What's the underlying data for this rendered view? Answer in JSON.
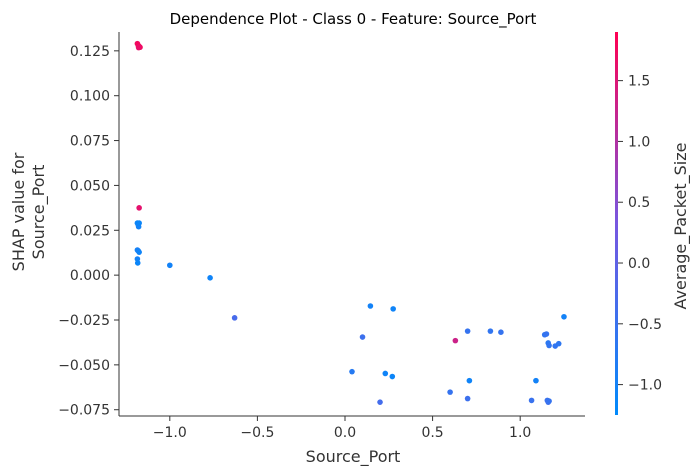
{
  "chart_data": {
    "type": "scatter",
    "title": "Dependence Plot - Class 0 - Feature: Source_Port",
    "xlabel": "Source_Port",
    "ylabel_lines": [
      "SHAP value for",
      "Source_Port"
    ],
    "colorbar_label": "Average_Packet_Size",
    "xlim": [
      -1.29,
      1.37
    ],
    "ylim": [
      -0.0785,
      0.1355
    ],
    "x_ticks": [
      -1.0,
      -0.5,
      0.0,
      0.5,
      1.0
    ],
    "x_tick_labels": [
      "−1.0",
      "−0.5",
      "0.0",
      "0.5",
      "1.0"
    ],
    "y_ticks": [
      -0.075,
      -0.05,
      -0.025,
      0.0,
      0.025,
      0.05,
      0.075,
      0.1,
      0.125
    ],
    "y_tick_labels": [
      "−0.075",
      "−0.050",
      "−0.025",
      "0.000",
      "0.025",
      "0.050",
      "0.075",
      "0.100",
      "0.125"
    ],
    "color_range": [
      -1.25,
      1.9
    ],
    "color_ticks": [
      -1.0,
      -0.5,
      0.0,
      0.5,
      1.0,
      1.5
    ],
    "color_tick_labels": [
      "−1.0",
      "−0.5",
      "0.0",
      "0.5",
      "1.0",
      "1.5"
    ],
    "colormap": [
      "#008afb",
      "#7757e0",
      "#ff0052"
    ],
    "grid": false,
    "points": [
      {
        "x": -1.185,
        "y": 0.129,
        "c": 1.75
      },
      {
        "x": -1.18,
        "y": 0.128,
        "c": 1.8
      },
      {
        "x": -1.175,
        "y": 0.1275,
        "c": 1.7
      },
      {
        "x": -1.17,
        "y": 0.127,
        "c": 1.75
      },
      {
        "x": -1.178,
        "y": 0.1268,
        "c": 1.65
      },
      {
        "x": -1.175,
        "y": 0.0375,
        "c": 1.6
      },
      {
        "x": -1.185,
        "y": 0.029,
        "c": -1.1
      },
      {
        "x": -1.18,
        "y": 0.028,
        "c": -1.05
      },
      {
        "x": -1.178,
        "y": 0.027,
        "c": -1.0
      },
      {
        "x": -1.175,
        "y": 0.029,
        "c": -1.1
      },
      {
        "x": -1.185,
        "y": 0.014,
        "c": -1.0
      },
      {
        "x": -1.18,
        "y": 0.0135,
        "c": -0.95
      },
      {
        "x": -1.175,
        "y": 0.0128,
        "c": -1.05
      },
      {
        "x": -1.185,
        "y": 0.009,
        "c": -1.0
      },
      {
        "x": -1.183,
        "y": 0.0068,
        "c": -1.1
      },
      {
        "x": -1.0,
        "y": 0.0055,
        "c": -1.0
      },
      {
        "x": -0.77,
        "y": -0.0015,
        "c": -1.05
      },
      {
        "x": -0.63,
        "y": -0.0238,
        "c": -0.3
      },
      {
        "x": 0.145,
        "y": -0.0172,
        "c": -1.0
      },
      {
        "x": 0.275,
        "y": -0.0188,
        "c": -1.05
      },
      {
        "x": 0.1,
        "y": -0.0345,
        "c": -0.45
      },
      {
        "x": 0.04,
        "y": -0.0538,
        "c": -0.75
      },
      {
        "x": 0.23,
        "y": -0.0548,
        "c": -1.05
      },
      {
        "x": 0.27,
        "y": -0.0565,
        "c": -1.1
      },
      {
        "x": 0.2,
        "y": -0.0708,
        "c": -0.35
      },
      {
        "x": 0.6,
        "y": -0.0652,
        "c": -0.55
      },
      {
        "x": 0.63,
        "y": -0.0365,
        "c": 1.3
      },
      {
        "x": 0.7,
        "y": -0.0312,
        "c": -0.55
      },
      {
        "x": 0.83,
        "y": -0.0312,
        "c": -0.6
      },
      {
        "x": 0.89,
        "y": -0.0318,
        "c": -0.55
      },
      {
        "x": 0.71,
        "y": -0.0588,
        "c": -1.05
      },
      {
        "x": 0.7,
        "y": -0.0688,
        "c": -0.45
      },
      {
        "x": 1.065,
        "y": -0.0698,
        "c": -0.5
      },
      {
        "x": 1.09,
        "y": -0.0588,
        "c": -1.0
      },
      {
        "x": 1.14,
        "y": -0.0332,
        "c": -0.6
      },
      {
        "x": 1.15,
        "y": -0.0328,
        "c": -0.55
      },
      {
        "x": 1.16,
        "y": -0.0378,
        "c": -0.7
      },
      {
        "x": 1.165,
        "y": -0.0392,
        "c": -0.6
      },
      {
        "x": 1.2,
        "y": -0.0395,
        "c": -0.6
      },
      {
        "x": 1.22,
        "y": -0.0382,
        "c": -0.65
      },
      {
        "x": 1.25,
        "y": -0.0232,
        "c": -1.0
      },
      {
        "x": 1.155,
        "y": -0.0698,
        "c": -0.5
      },
      {
        "x": 1.16,
        "y": -0.0708,
        "c": -0.45
      },
      {
        "x": 1.165,
        "y": -0.0702,
        "c": -0.55
      }
    ]
  }
}
